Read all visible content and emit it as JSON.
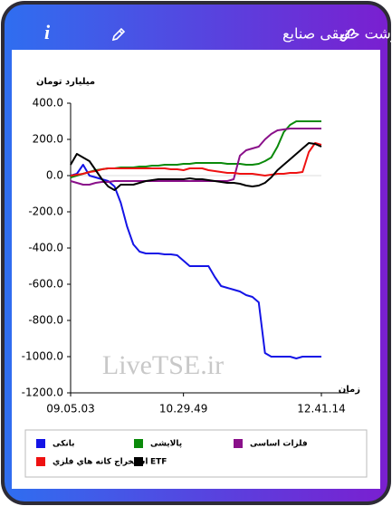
{
  "header": {
    "title": "پول درشت حقیقی صنایع",
    "info_icon": "i"
  },
  "chart_data": {
    "type": "line",
    "y_label": "میلیارد تومان",
    "x_label": "زمان",
    "watermark": "LiveTSE.ir",
    "categories": [
      "09.05.03",
      null,
      null,
      null,
      null,
      null,
      null,
      null,
      null,
      null,
      null,
      null,
      null,
      null,
      null,
      null,
      null,
      null,
      "10.29.49",
      null,
      null,
      null,
      null,
      null,
      null,
      null,
      null,
      null,
      null,
      null,
      null,
      null,
      null,
      null,
      null,
      null,
      null,
      null,
      null,
      null,
      "12.41.14"
    ],
    "ylim": [
      -1200,
      400
    ],
    "yticks": [
      {
        "value": 400,
        "label": "400.0"
      },
      {
        "value": 200,
        "label": "200.0"
      },
      {
        "value": 0,
        "label": "0.0"
      },
      {
        "value": -200,
        "label": "-200.0"
      },
      {
        "value": -400,
        "label": "-400.0"
      },
      {
        "value": -600,
        "label": "-600.0"
      },
      {
        "value": -800,
        "label": "-800.0"
      },
      {
        "value": -1000,
        "label": "-1000.0"
      },
      {
        "value": -1200,
        "label": "-1200.0"
      }
    ],
    "series": [
      {
        "name": "بانکی",
        "color": "#1414e6",
        "values": [
          0,
          10,
          60,
          0,
          -10,
          -20,
          -30,
          -60,
          -150,
          -280,
          -380,
          -420,
          -430,
          -430,
          -430,
          -435,
          -435,
          -440,
          -470,
          -500,
          -500,
          -500,
          -500,
          -560,
          -610,
          -620,
          -630,
          -640,
          -660,
          -670,
          -700,
          -980,
          -1000,
          -1000,
          -1000,
          -1000,
          -1010,
          -1000,
          -1000,
          -1000,
          -1000
        ]
      },
      {
        "name": "پالایشی",
        "color": "#0a8a0a",
        "values": [
          -10,
          0,
          10,
          20,
          30,
          35,
          40,
          40,
          45,
          45,
          45,
          50,
          50,
          55,
          55,
          60,
          60,
          60,
          65,
          65,
          70,
          70,
          70,
          70,
          70,
          65,
          65,
          65,
          60,
          60,
          65,
          80,
          100,
          160,
          240,
          280,
          300,
          300,
          300,
          300,
          300
        ]
      },
      {
        "name": "فلزات اساسی",
        "color": "#8a108a",
        "values": [
          -30,
          -40,
          -50,
          -50,
          -40,
          -35,
          -35,
          -30,
          -30,
          -30,
          -30,
          -30,
          -30,
          -30,
          -30,
          -30,
          -30,
          -30,
          -30,
          -30,
          -30,
          -30,
          -30,
          -30,
          -30,
          -30,
          -20,
          110,
          140,
          150,
          160,
          200,
          230,
          250,
          255,
          260,
          260,
          260,
          260,
          260,
          260
        ]
      },
      {
        "name": "استخراج کانه هاي فلزي",
        "color": "#ee1111",
        "values": [
          0,
          5,
          10,
          20,
          25,
          35,
          40,
          40,
          40,
          40,
          40,
          40,
          40,
          40,
          40,
          40,
          35,
          35,
          30,
          40,
          40,
          40,
          30,
          25,
          20,
          15,
          15,
          10,
          10,
          10,
          5,
          0,
          5,
          10,
          10,
          15,
          15,
          20,
          130,
          180,
          170
        ]
      },
      {
        "name": "ETF",
        "color": "#000000",
        "values": [
          60,
          120,
          100,
          80,
          30,
          -20,
          -60,
          -80,
          -50,
          -50,
          -50,
          -40,
          -30,
          -25,
          -20,
          -20,
          -20,
          -20,
          -20,
          -15,
          -20,
          -20,
          -25,
          -30,
          -35,
          -40,
          -40,
          -45,
          -55,
          -60,
          -55,
          -40,
          -10,
          30,
          60,
          90,
          120,
          150,
          180,
          175,
          160
        ]
      }
    ]
  }
}
